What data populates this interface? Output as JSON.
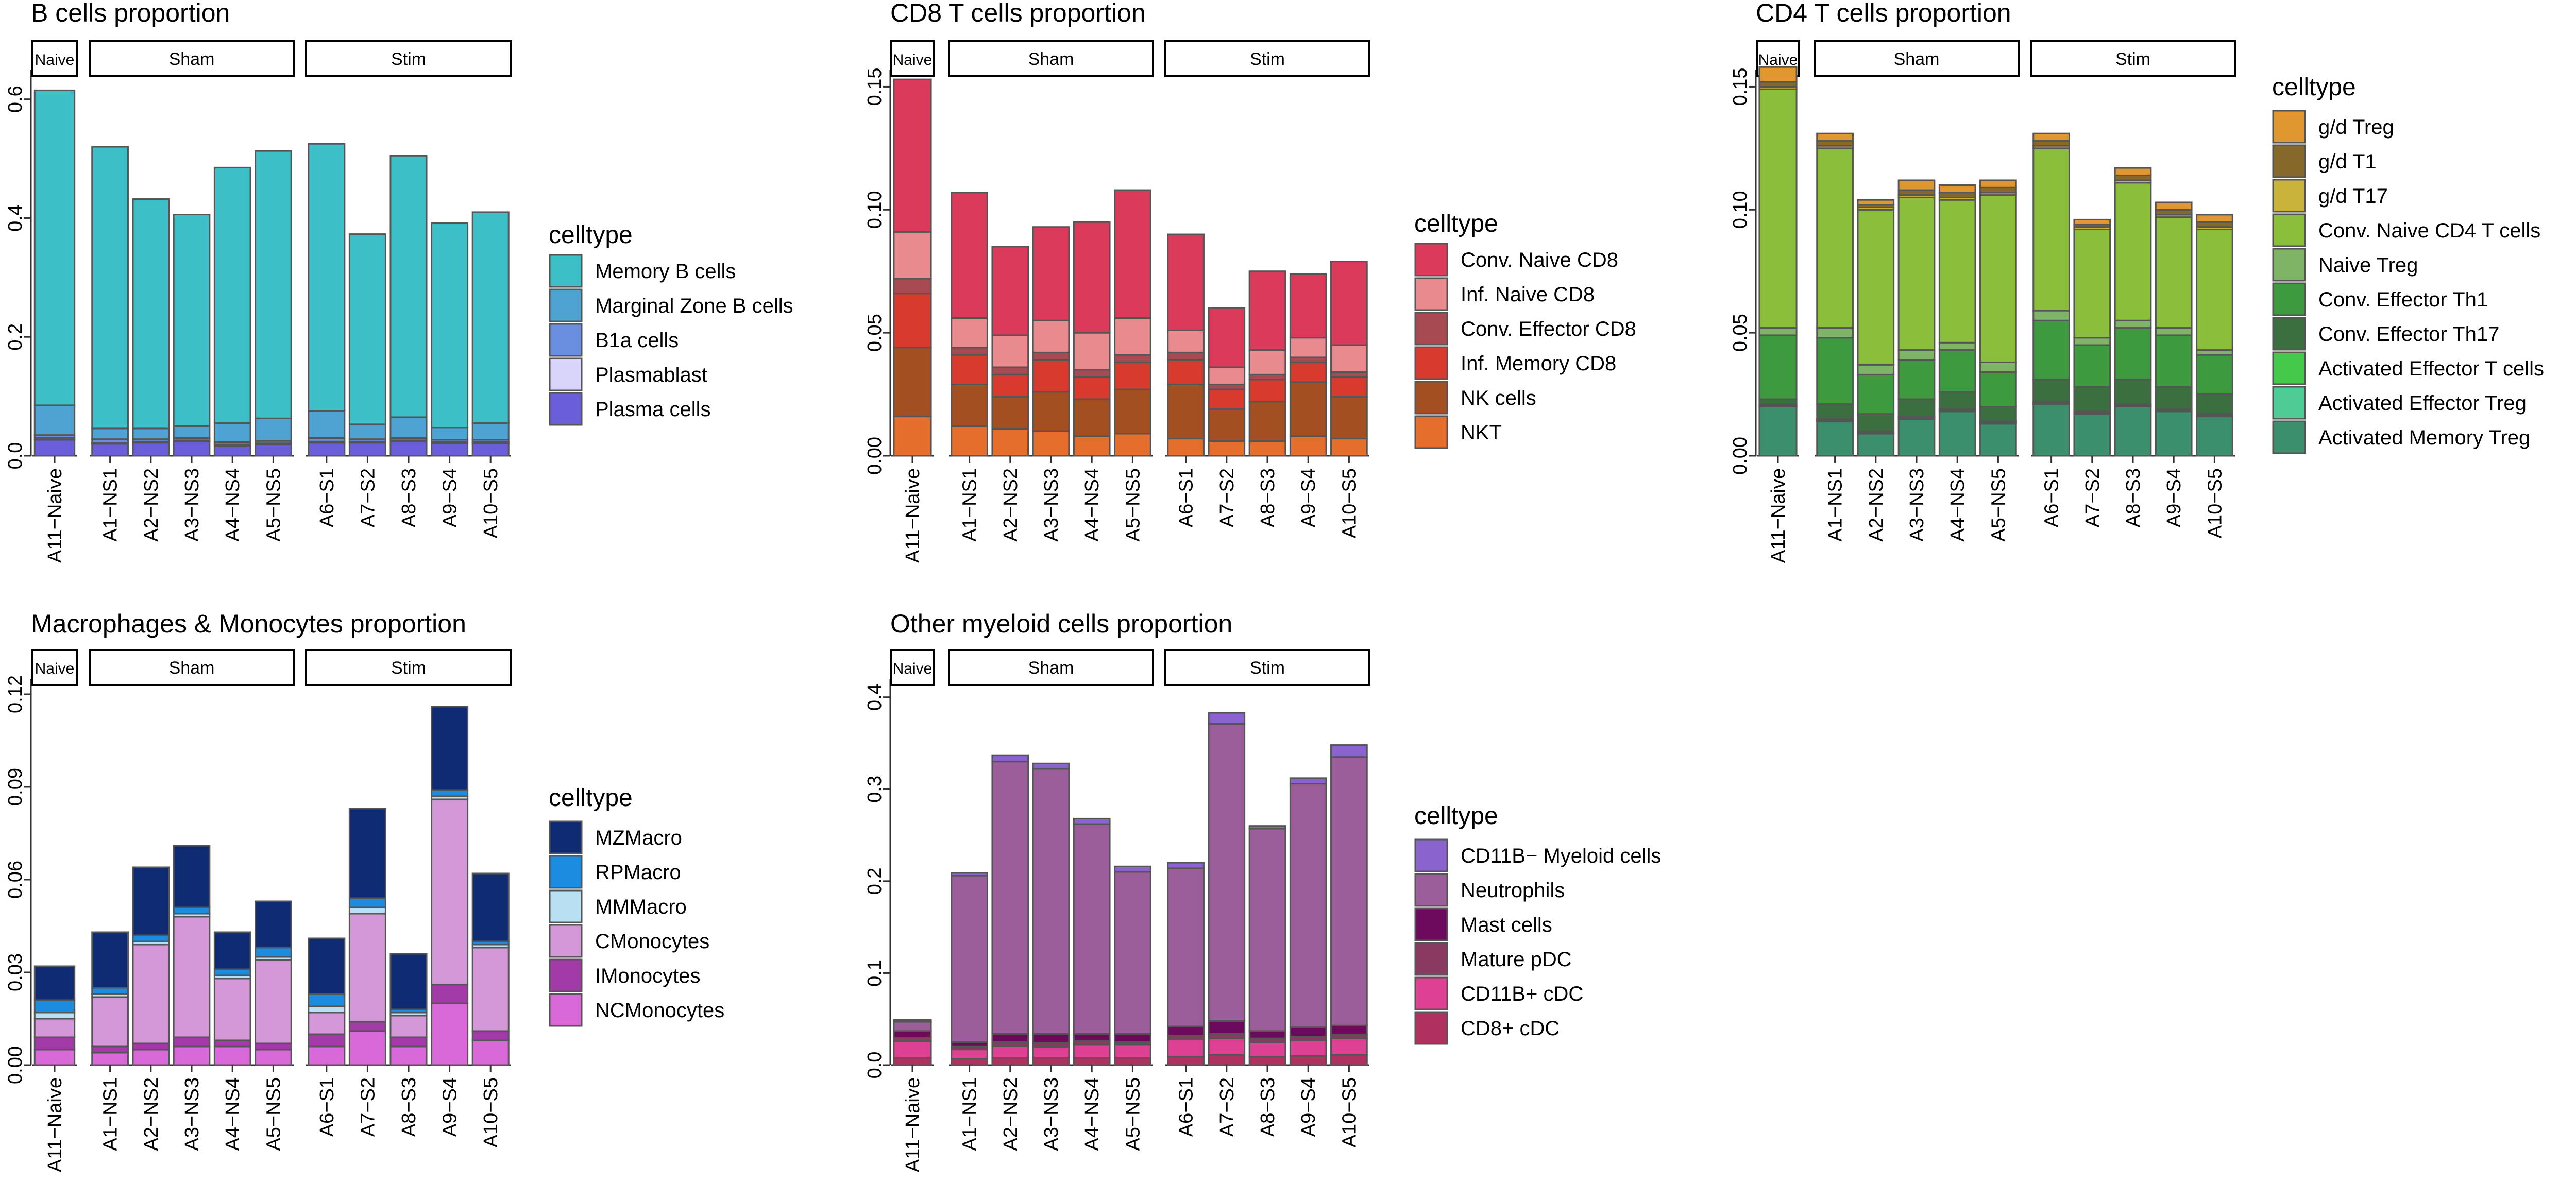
{
  "chart_data": [
    {
      "type": "bar",
      "stacked": true,
      "title": "B cells proportion",
      "xlabel": "",
      "ylabel": "",
      "ylim": [
        0,
        0.65
      ],
      "yticks": [
        "0.0",
        "0.2",
        "0.4",
        "0.6"
      ],
      "ytick_values": [
        0,
        0.2,
        0.4,
        0.6
      ],
      "grid": false,
      "legend_title": "celltype",
      "legend_position": "right",
      "facets": [
        {
          "label": "Naive",
          "categories": [
            "A11−Naive"
          ]
        },
        {
          "label": "Sham",
          "categories": [
            "A1−NS1",
            "A2−NS2",
            "A3−NS3",
            "A4−NS4",
            "A5−NS5"
          ]
        },
        {
          "label": "Stim",
          "categories": [
            "A6−S1",
            "A7−S2",
            "A8−S3",
            "A9−S4",
            "A10−S5"
          ]
        }
      ],
      "categories": [
        "A11−Naive",
        "A1−NS1",
        "A2−NS2",
        "A3−NS3",
        "A4−NS4",
        "A5−NS5",
        "A6−S1",
        "A7−S2",
        "A8−S3",
        "A9−S4",
        "A10−S5"
      ],
      "series": [
        {
          "name": "Memory B cells",
          "color": "#3DBFC8",
          "values": [
            0.53,
            0.474,
            0.386,
            0.356,
            0.43,
            0.45,
            0.45,
            0.32,
            0.44,
            0.345,
            0.355
          ]
        },
        {
          "name": "Marginal Zone B cells",
          "color": "#4FA3D3",
          "values": [
            0.05,
            0.018,
            0.018,
            0.02,
            0.032,
            0.038,
            0.045,
            0.025,
            0.035,
            0.02,
            0.028
          ]
        },
        {
          "name": "B1a cells",
          "color": "#6B8FE0",
          "values": [
            0.005,
            0.006,
            0.004,
            0.004,
            0.004,
            0.004,
            0.006,
            0.004,
            0.004,
            0.004,
            0.004
          ]
        },
        {
          "name": "Plasmablast",
          "color": "#D8D4FA",
          "values": [
            0.003,
            0.002,
            0.002,
            0.002,
            0.002,
            0.002,
            0.002,
            0.002,
            0.002,
            0.002,
            0.002
          ]
        },
        {
          "name": "Plasma cells",
          "color": "#6A5EDB",
          "values": [
            0.027,
            0.02,
            0.022,
            0.024,
            0.017,
            0.019,
            0.022,
            0.022,
            0.024,
            0.021,
            0.021
          ]
        }
      ]
    },
    {
      "type": "bar",
      "stacked": true,
      "title": "CD8 T cells proportion",
      "xlabel": "",
      "ylabel": "",
      "ylim": [
        0,
        0.157
      ],
      "yticks": [
        "0.00",
        "0.05",
        "0.10",
        "0.15"
      ],
      "ytick_values": [
        0,
        0.05,
        0.1,
        0.15
      ],
      "grid": false,
      "legend_title": "celltype",
      "legend_position": "right",
      "facets": [
        {
          "label": "Naive",
          "categories": [
            "A11−Naive"
          ]
        },
        {
          "label": "Sham",
          "categories": [
            "A1−NS1",
            "A2−NS2",
            "A3−NS3",
            "A4−NS4",
            "A5−NS5"
          ]
        },
        {
          "label": "Stim",
          "categories": [
            "A6−S1",
            "A7−S2",
            "A8−S3",
            "A9−S4",
            "A10−S5"
          ]
        }
      ],
      "categories": [
        "A11−Naive",
        "A1−NS1",
        "A2−NS2",
        "A3−NS3",
        "A4−NS4",
        "A5−NS5",
        "A6−S1",
        "A7−S2",
        "A8−S3",
        "A9−S4",
        "A10−S5"
      ],
      "series": [
        {
          "name": "Conv. Naive CD8",
          "color": "#DC3A5A",
          "values": [
            0.062,
            0.051,
            0.036,
            0.038,
            0.045,
            0.052,
            0.039,
            0.024,
            0.032,
            0.026,
            0.034
          ]
        },
        {
          "name": "Inf. Naive CD8",
          "color": "#E98A8E",
          "values": [
            0.019,
            0.012,
            0.013,
            0.013,
            0.015,
            0.015,
            0.009,
            0.007,
            0.01,
            0.008,
            0.011
          ]
        },
        {
          "name": "Conv. Effector CD8",
          "color": "#A74A52",
          "values": [
            0.006,
            0.003,
            0.003,
            0.003,
            0.003,
            0.003,
            0.003,
            0.002,
            0.002,
            0.002,
            0.002
          ]
        },
        {
          "name": "Inf. Memory CD8",
          "color": "#D83B2E",
          "values": [
            0.022,
            0.012,
            0.009,
            0.013,
            0.009,
            0.011,
            0.01,
            0.008,
            0.009,
            0.008,
            0.008
          ]
        },
        {
          "name": "NK cells",
          "color": "#A34F22",
          "values": [
            0.028,
            0.017,
            0.013,
            0.016,
            0.015,
            0.018,
            0.022,
            0.013,
            0.016,
            0.022,
            0.017
          ]
        },
        {
          "name": "NKT",
          "color": "#E56E2D",
          "values": [
            0.016,
            0.012,
            0.011,
            0.01,
            0.008,
            0.009,
            0.007,
            0.006,
            0.006,
            0.008,
            0.007
          ]
        }
      ]
    },
    {
      "type": "bar",
      "stacked": true,
      "title": "CD4 T cells proportion",
      "xlabel": "",
      "ylabel": "",
      "ylim": [
        0,
        0.157
      ],
      "yticks": [
        "0.00",
        "0.05",
        "0.10",
        "0.15"
      ],
      "ytick_values": [
        0,
        0.05,
        0.1,
        0.15
      ],
      "grid": false,
      "legend_title": "celltype",
      "legend_position": "right",
      "facets": [
        {
          "label": "Naive",
          "categories": [
            "A11−Naive"
          ]
        },
        {
          "label": "Sham",
          "categories": [
            "A1−NS1",
            "A2−NS2",
            "A3−NS3",
            "A4−NS4",
            "A5−NS5"
          ]
        },
        {
          "label": "Stim",
          "categories": [
            "A6−S1",
            "A7−S2",
            "A8−S3",
            "A9−S4",
            "A10−S5"
          ]
        }
      ],
      "categories": [
        "A11−Naive",
        "A1−NS1",
        "A2−NS2",
        "A3−NS3",
        "A4−NS4",
        "A5−NS5",
        "A6−S1",
        "A7−S2",
        "A8−S3",
        "A9−S4",
        "A10−S5"
      ],
      "series": [
        {
          "name": "g/d Treg",
          "color": "#E0972F",
          "values": [
            0.006,
            0.003,
            0.002,
            0.004,
            0.003,
            0.003,
            0.003,
            0.002,
            0.003,
            0.003,
            0.003
          ]
        },
        {
          "name": "g/d T1",
          "color": "#86692A",
          "values": [
            0.002,
            0.002,
            0.001,
            0.002,
            0.002,
            0.002,
            0.002,
            0.001,
            0.002,
            0.002,
            0.002
          ]
        },
        {
          "name": "g/d T17",
          "color": "#C9B33A",
          "values": [
            0.001,
            0.001,
            0.001,
            0.001,
            0.001,
            0.001,
            0.001,
            0.001,
            0.001,
            0.001,
            0.001
          ]
        },
        {
          "name": "Conv. Naive CD4 T cells",
          "color": "#8BBE3A",
          "values": [
            0.097,
            0.073,
            0.063,
            0.062,
            0.058,
            0.068,
            0.066,
            0.044,
            0.056,
            0.045,
            0.049
          ]
        },
        {
          "name": "Naive Treg",
          "color": "#7FB365",
          "values": [
            0.003,
            0.004,
            0.004,
            0.004,
            0.003,
            0.004,
            0.004,
            0.003,
            0.003,
            0.003,
            0.002
          ]
        },
        {
          "name": "Conv. Effector Th1",
          "color": "#3E9A3E",
          "values": [
            0.026,
            0.027,
            0.016,
            0.016,
            0.017,
            0.014,
            0.024,
            0.017,
            0.021,
            0.021,
            0.016
          ]
        },
        {
          "name": "Conv. Effector Th17",
          "color": "#3B6F3F",
          "values": [
            0.002,
            0.006,
            0.007,
            0.007,
            0.007,
            0.006,
            0.009,
            0.01,
            0.01,
            0.009,
            0.008
          ]
        },
        {
          "name": "Activated Effector T cells",
          "color": "#44C94A",
          "values": [
            0.0005,
            0.0005,
            0.0005,
            0.0005,
            0.0005,
            0.0005,
            0.0005,
            0.0005,
            0.0005,
            0.0005,
            0.0005
          ]
        },
        {
          "name": "Activated Effector Treg",
          "color": "#4FCB96",
          "values": [
            0.0005,
            0.0005,
            0.0005,
            0.0005,
            0.0005,
            0.0005,
            0.0005,
            0.0005,
            0.0005,
            0.0005,
            0.0005
          ]
        },
        {
          "name": "Activated Memory Treg",
          "color": "#3B8F6C",
          "values": [
            0.02,
            0.014,
            0.009,
            0.015,
            0.018,
            0.013,
            0.021,
            0.017,
            0.02,
            0.018,
            0.016
          ]
        }
      ]
    },
    {
      "type": "bar",
      "stacked": true,
      "title": "Macrophages & Monocytes proportion",
      "xlabel": "",
      "ylabel": "",
      "ylim": [
        0,
        0.125
      ],
      "yticks": [
        "0.00",
        "0.03",
        "0.06",
        "0.09",
        "0.12"
      ],
      "ytick_values": [
        0,
        0.03,
        0.06,
        0.09,
        0.12
      ],
      "grid": false,
      "legend_title": "celltype",
      "legend_position": "right",
      "facets": [
        {
          "label": "Naive",
          "categories": [
            "A11−Naive"
          ]
        },
        {
          "label": "Sham",
          "categories": [
            "A1−NS1",
            "A2−NS2",
            "A3−NS3",
            "A4−NS4",
            "A5−NS5"
          ]
        },
        {
          "label": "Stim",
          "categories": [
            "A6−S1",
            "A7−S2",
            "A8−S3",
            "A9−S4",
            "A10−S5"
          ]
        }
      ],
      "categories": [
        "A11−Naive",
        "A1−NS1",
        "A2−NS2",
        "A3−NS3",
        "A4−NS4",
        "A5−NS5",
        "A6−S1",
        "A7−S2",
        "A8−S3",
        "A9−S4",
        "A10−S5"
      ],
      "series": [
        {
          "name": "MZMacro",
          "color": "#0F2B73",
          "values": [
            0.011,
            0.018,
            0.022,
            0.02,
            0.012,
            0.015,
            0.018,
            0.029,
            0.018,
            0.027,
            0.022
          ]
        },
        {
          "name": "RPMacro",
          "color": "#1C8CE0",
          "values": [
            0.004,
            0.002,
            0.002,
            0.002,
            0.002,
            0.003,
            0.004,
            0.003,
            0.001,
            0.002,
            0.001
          ]
        },
        {
          "name": "MMMacro",
          "color": "#B8E0F2",
          "values": [
            0.002,
            0.001,
            0.001,
            0.001,
            0.001,
            0.001,
            0.002,
            0.002,
            0.001,
            0.001,
            0.001
          ]
        },
        {
          "name": "CMonocytes",
          "color": "#D498D8",
          "values": [
            0.006,
            0.016,
            0.032,
            0.039,
            0.02,
            0.027,
            0.007,
            0.035,
            0.007,
            0.06,
            0.027
          ]
        },
        {
          "name": "IMonocytes",
          "color": "#A23AA8",
          "values": [
            0.004,
            0.002,
            0.002,
            0.003,
            0.002,
            0.002,
            0.004,
            0.003,
            0.003,
            0.006,
            0.003
          ]
        },
        {
          "name": "NCMonocytes",
          "color": "#D968D8",
          "values": [
            0.005,
            0.004,
            0.005,
            0.006,
            0.006,
            0.005,
            0.006,
            0.011,
            0.006,
            0.02,
            0.008
          ]
        }
      ]
    },
    {
      "type": "bar",
      "stacked": true,
      "title": "Other myeloid cells proportion",
      "xlabel": "",
      "ylabel": "",
      "ylim": [
        0,
        0.42
      ],
      "yticks": [
        "0.0",
        "0.1",
        "0.2",
        "0.3",
        "0.4"
      ],
      "ytick_values": [
        0,
        0.1,
        0.2,
        0.3,
        0.4
      ],
      "grid": false,
      "legend_title": "celltype",
      "legend_position": "right",
      "facets": [
        {
          "label": "Naive",
          "categories": [
            "A11−Naive"
          ]
        },
        {
          "label": "Sham",
          "categories": [
            "A1−NS1",
            "A2−NS2",
            "A3−NS3",
            "A4−NS4",
            "A5−NS5"
          ]
        },
        {
          "label": "Stim",
          "categories": [
            "A6−S1",
            "A7−S2",
            "A8−S3",
            "A9−S4",
            "A10−S5"
          ]
        }
      ],
      "categories": [
        "A11−Naive",
        "A1−NS1",
        "A2−NS2",
        "A3−NS3",
        "A4−NS4",
        "A5−NS5",
        "A6−S1",
        "A7−S2",
        "A8−S3",
        "A9−S4",
        "A10−S5"
      ],
      "series": [
        {
          "name": "CD11B− Myeloid cells",
          "color": "#8A63CF",
          "values": [
            0.002,
            0.003,
            0.007,
            0.006,
            0.006,
            0.006,
            0.006,
            0.012,
            0.003,
            0.006,
            0.013
          ]
        },
        {
          "name": "Neutrophils",
          "color": "#9B5E9A",
          "values": [
            0.01,
            0.181,
            0.296,
            0.288,
            0.228,
            0.176,
            0.172,
            0.323,
            0.22,
            0.265,
            0.292
          ]
        },
        {
          "name": "Mast cells",
          "color": "#6E0A5E",
          "values": [
            0.007,
            0.005,
            0.009,
            0.01,
            0.008,
            0.009,
            0.01,
            0.014,
            0.008,
            0.01,
            0.01
          ]
        },
        {
          "name": "Mature pDC",
          "color": "#8A3A60",
          "values": [
            0.004,
            0.003,
            0.004,
            0.004,
            0.004,
            0.003,
            0.004,
            0.005,
            0.004,
            0.004,
            0.004
          ]
        },
        {
          "name": "CD11B+ cDC",
          "color": "#DE4094",
          "values": [
            0.018,
            0.01,
            0.013,
            0.012,
            0.014,
            0.014,
            0.019,
            0.018,
            0.016,
            0.017,
            0.018
          ]
        },
        {
          "name": "CD8+ cDC",
          "color": "#B03060",
          "values": [
            0.008,
            0.007,
            0.008,
            0.008,
            0.008,
            0.008,
            0.009,
            0.011,
            0.009,
            0.01,
            0.011
          ]
        }
      ]
    }
  ]
}
